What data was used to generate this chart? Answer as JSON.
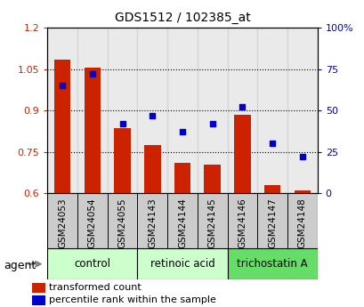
{
  "title": "GDS1512 / 102385_at",
  "samples": [
    "GSM24053",
    "GSM24054",
    "GSM24055",
    "GSM24143",
    "GSM24144",
    "GSM24145",
    "GSM24146",
    "GSM24147",
    "GSM24148"
  ],
  "transformed_count": [
    1.085,
    1.055,
    0.835,
    0.775,
    0.71,
    0.705,
    0.885,
    0.63,
    0.61
  ],
  "percentile_rank": [
    65,
    72,
    42,
    47,
    37,
    42,
    52,
    30,
    22
  ],
  "bar_color": "#cc2200",
  "dot_color": "#0000cc",
  "bar_bottom": 0.6,
  "ylim_left": [
    0.6,
    1.2
  ],
  "ylim_right": [
    0,
    100
  ],
  "yticks_left": [
    0.6,
    0.75,
    0.9,
    1.05,
    1.2
  ],
  "ytick_labels_left": [
    "0.6",
    "0.75",
    "0.9",
    "1.05",
    "1.2"
  ],
  "yticks_right": [
    0,
    25,
    50,
    75,
    100
  ],
  "ytick_labels_right": [
    "0",
    "25",
    "50",
    "75",
    "100%"
  ],
  "groups": [
    {
      "label": "control",
      "start": 0,
      "end": 2,
      "color": "#ccffcc"
    },
    {
      "label": "retinoic acid",
      "start": 3,
      "end": 5,
      "color": "#ccffcc"
    },
    {
      "label": "trichostatin A",
      "start": 6,
      "end": 8,
      "color": "#66dd66"
    }
  ],
  "agent_label": "agent",
  "legend_bar_label": "transformed count",
  "legend_dot_label": "percentile rank within the sample",
  "tick_label_color_left": "#cc2200",
  "tick_label_color_right": "#0000cc",
  "bar_width": 0.55,
  "sample_bg_color": "#cccccc",
  "grid_linestyle": "dotted"
}
